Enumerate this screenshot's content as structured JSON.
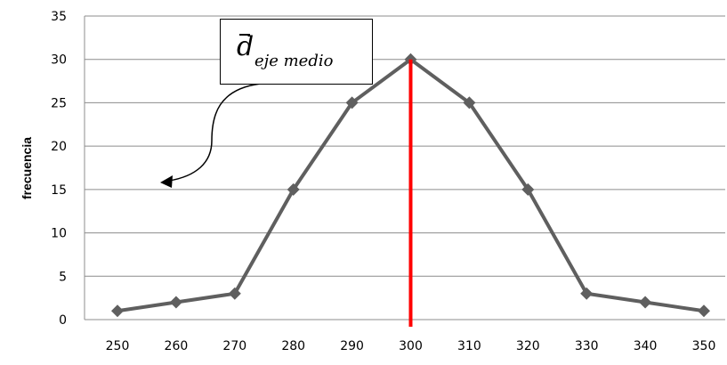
{
  "chart_data": {
    "type": "line",
    "x": [
      250,
      260,
      270,
      280,
      290,
      300,
      310,
      320,
      330,
      340,
      350
    ],
    "values": [
      1,
      2,
      3,
      15,
      25,
      30,
      25,
      15,
      3,
      2,
      1
    ],
    "ylabel": "frecuencia",
    "xlabel": "",
    "ylim": [
      0,
      35
    ],
    "yticks": [
      0,
      5,
      10,
      15,
      20,
      25,
      30,
      35
    ],
    "xticks": [
      250,
      260,
      270,
      280,
      290,
      300,
      310,
      320,
      330,
      340,
      350
    ],
    "grid": "horizontal",
    "series_color": "#5f5f5f",
    "marker": "diamond",
    "vertical_line": {
      "x": 300,
      "color": "#ff0000"
    },
    "annotation": {
      "symbol": "d",
      "subscript": "eje medio"
    }
  }
}
